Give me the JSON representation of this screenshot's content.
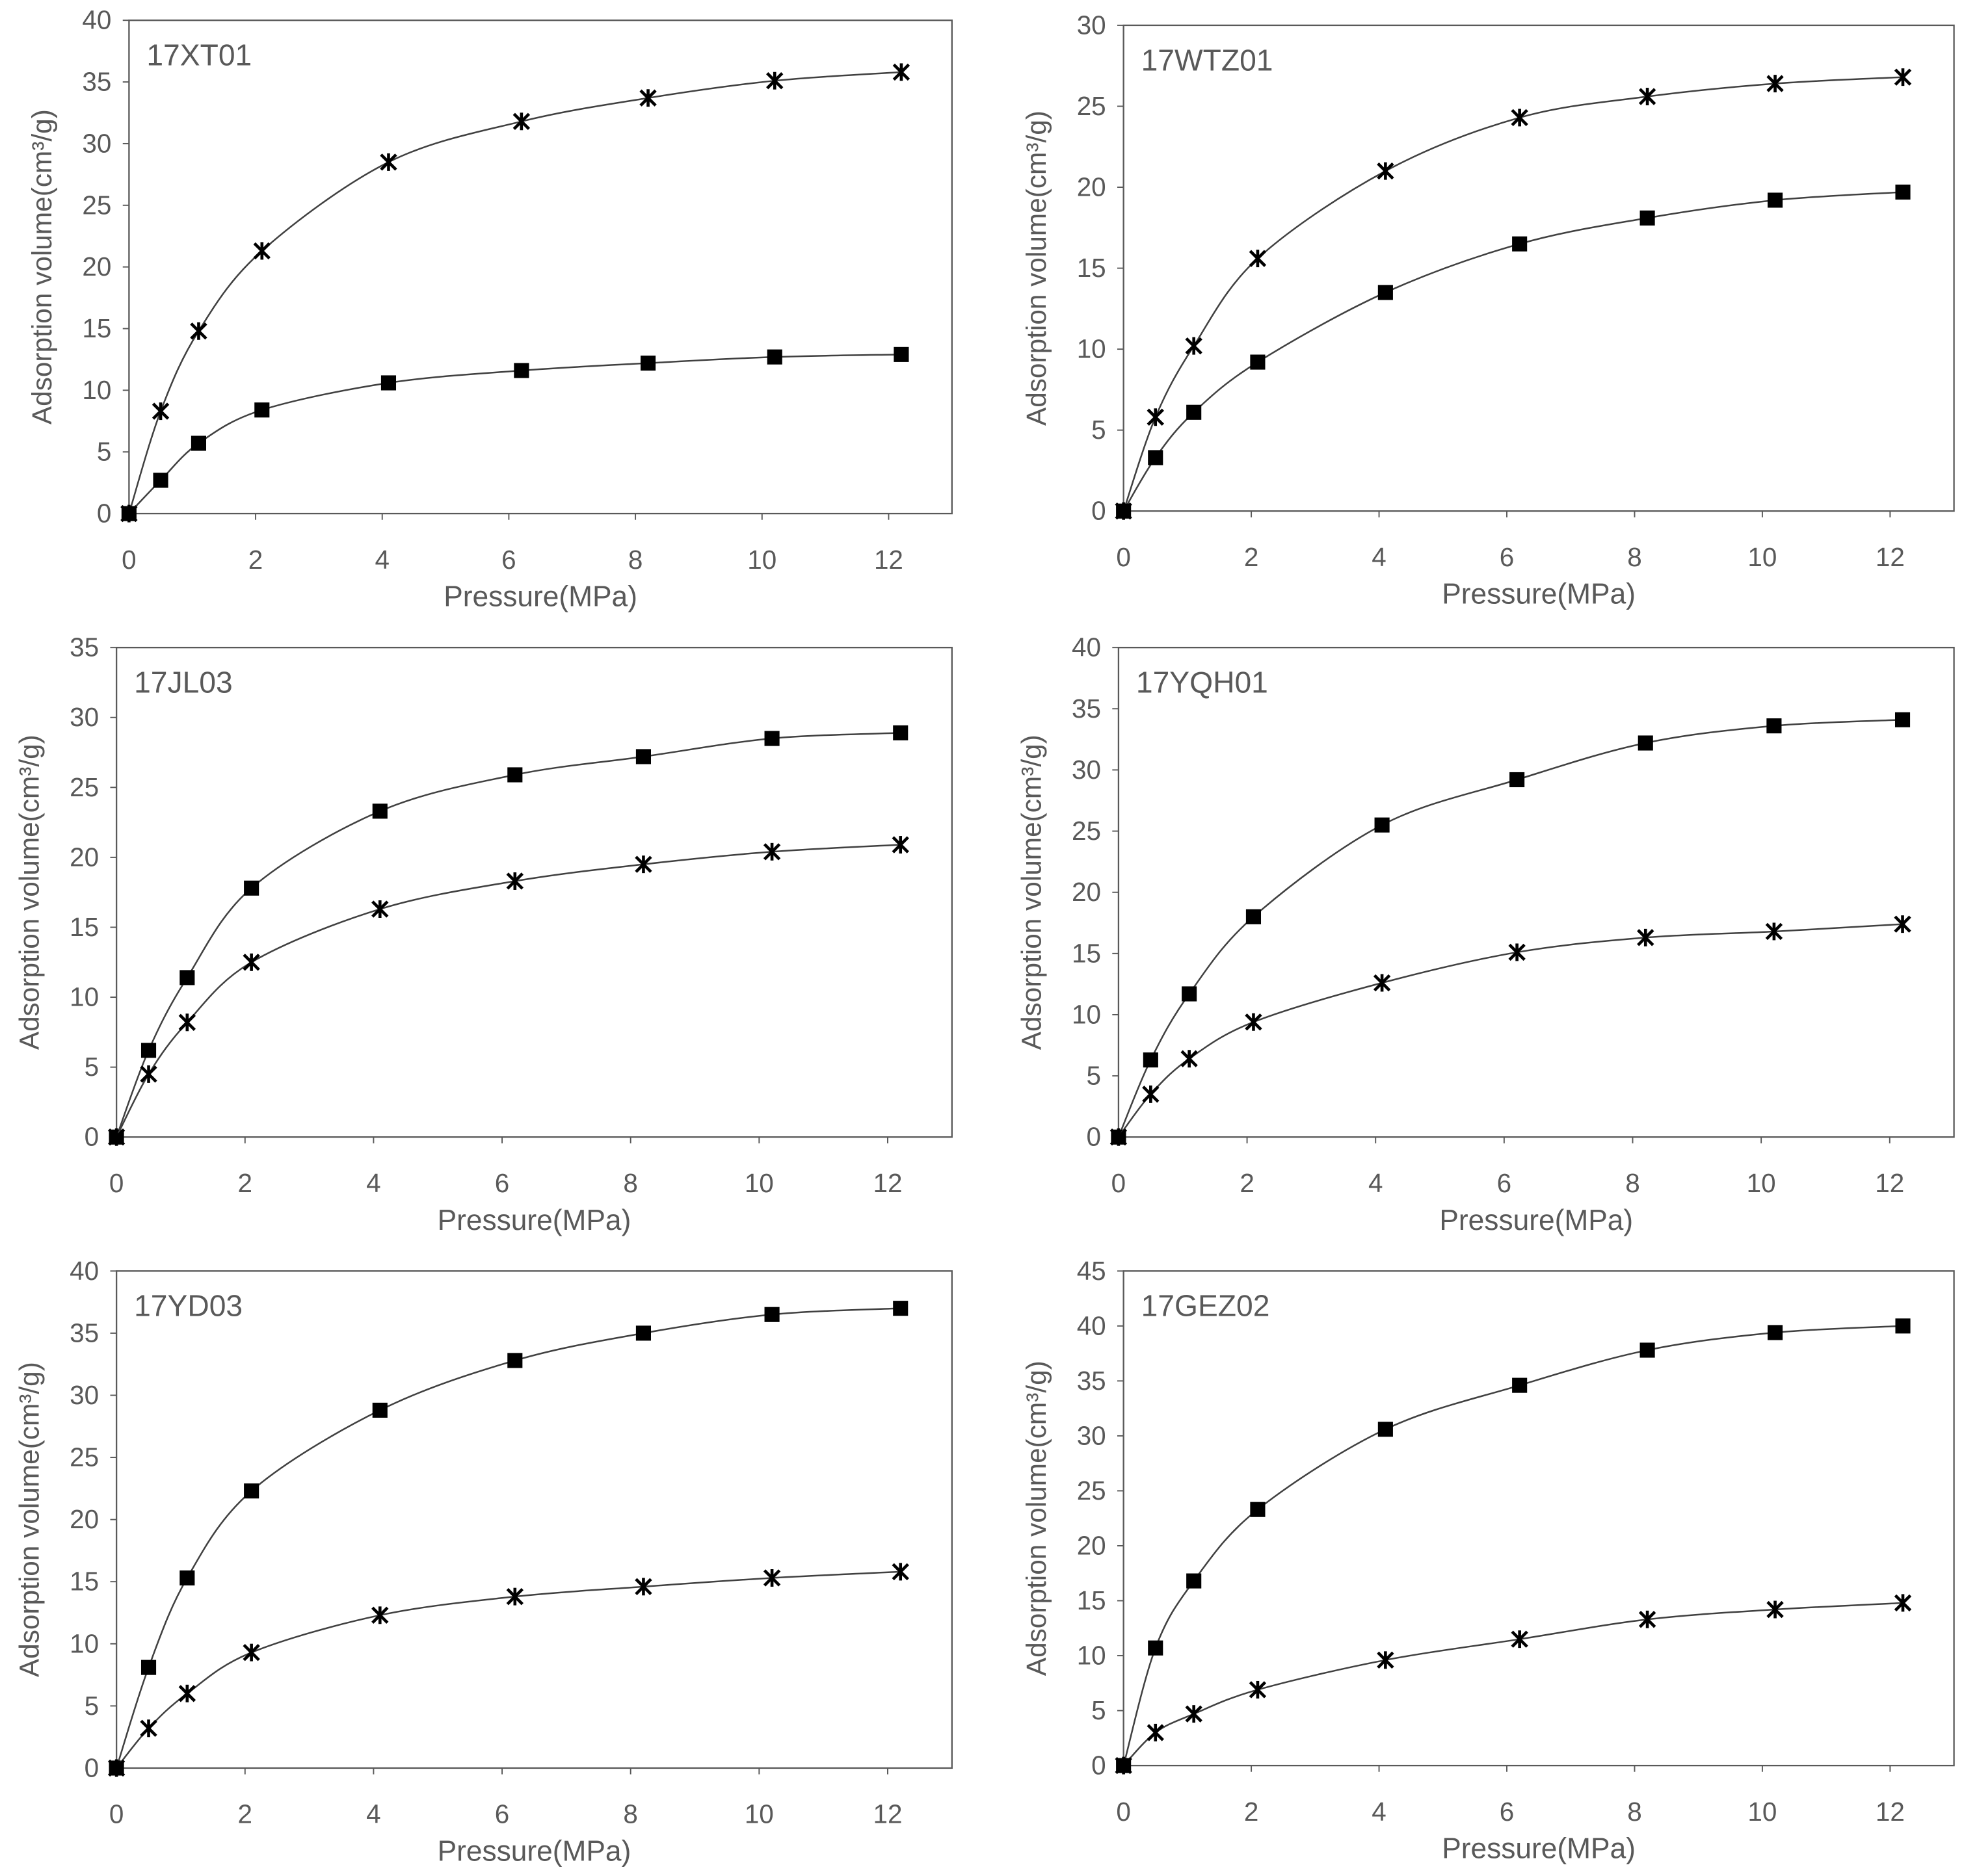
{
  "chart_data": [
    {
      "type": "line",
      "title": "17XT01",
      "xlabel": "Pressure(MPa)",
      "ylabel": "Adsorption volume(cm³/g)",
      "xlim": [
        0,
        13
      ],
      "ylim": [
        0,
        40
      ],
      "yticks": [
        0,
        5,
        10,
        15,
        20,
        25,
        30,
        35,
        40
      ],
      "xticks": [
        0,
        2,
        4,
        6,
        8,
        10,
        12
      ],
      "x": [
        0,
        0.5,
        1.1,
        2.1,
        4.1,
        6.2,
        8.2,
        10.2,
        12.2
      ],
      "series": [
        {
          "name": "star",
          "marker": "star",
          "values": [
            0,
            8.3,
            14.8,
            21.3,
            28.5,
            31.8,
            33.7,
            35.1,
            35.8
          ]
        },
        {
          "name": "square",
          "marker": "square",
          "values": [
            0,
            2.7,
            5.7,
            8.4,
            10.6,
            11.6,
            12.2,
            12.7,
            12.9
          ]
        }
      ]
    },
    {
      "type": "line",
      "title": "17WTZ01",
      "xlabel": "Pressure(MPa)",
      "ylabel": "Adsorption volume(cm³/g)",
      "xlim": [
        0,
        13
      ],
      "ylim": [
        0,
        30
      ],
      "yticks": [
        0,
        5,
        10,
        15,
        20,
        25,
        30
      ],
      "xticks": [
        0,
        2,
        4,
        6,
        8,
        10,
        12
      ],
      "x": [
        0,
        0.5,
        1.1,
        2.1,
        4.1,
        6.2,
        8.2,
        10.2,
        12.2
      ],
      "series": [
        {
          "name": "star",
          "marker": "star",
          "values": [
            0,
            5.8,
            10.2,
            15.6,
            21.0,
            24.3,
            25.6,
            26.4,
            26.8
          ]
        },
        {
          "name": "square",
          "marker": "square",
          "values": [
            0,
            3.3,
            6.1,
            9.2,
            13.5,
            16.5,
            18.1,
            19.2,
            19.7
          ]
        }
      ]
    },
    {
      "type": "line",
      "title": "17JL03",
      "xlabel": "Pressure(MPa)",
      "ylabel": "Adsorption volume(cm³/g)",
      "xlim": [
        0,
        13
      ],
      "ylim": [
        0,
        35
      ],
      "yticks": [
        0,
        5,
        10,
        15,
        20,
        25,
        30,
        35
      ],
      "xticks": [
        0,
        2,
        4,
        6,
        8,
        10,
        12
      ],
      "x": [
        0,
        0.5,
        1.1,
        2.1,
        4.1,
        6.2,
        8.2,
        10.2,
        12.2
      ],
      "series": [
        {
          "name": "square",
          "marker": "square",
          "values": [
            0,
            6.2,
            11.4,
            17.8,
            23.3,
            25.9,
            27.2,
            28.5,
            28.9
          ]
        },
        {
          "name": "star",
          "marker": "star",
          "values": [
            0,
            4.5,
            8.2,
            12.5,
            16.3,
            18.3,
            19.5,
            20.4,
            20.9
          ]
        }
      ]
    },
    {
      "type": "line",
      "title": "17YQH01",
      "xlabel": "Pressure(MPa)",
      "ylabel": "Adsorption volume(cm³/g)",
      "xlim": [
        0,
        13
      ],
      "ylim": [
        0,
        40
      ],
      "yticks": [
        0,
        5,
        10,
        15,
        20,
        25,
        30,
        35,
        40
      ],
      "xticks": [
        0,
        2,
        4,
        6,
        8,
        10,
        12
      ],
      "x": [
        0,
        0.5,
        1.1,
        2.1,
        4.1,
        6.2,
        8.2,
        10.2,
        12.2
      ],
      "series": [
        {
          "name": "square",
          "marker": "square",
          "values": [
            0,
            6.3,
            11.7,
            18.0,
            25.5,
            29.2,
            32.2,
            33.6,
            34.1
          ]
        },
        {
          "name": "star",
          "marker": "star",
          "values": [
            0,
            3.5,
            6.4,
            9.4,
            12.6,
            15.1,
            16.3,
            16.8,
            17.4
          ]
        }
      ]
    },
    {
      "type": "line",
      "title": "17YD03",
      "xlabel": "Pressure(MPa)",
      "ylabel": "Adsorption volume(cm³/g)",
      "xlim": [
        0,
        13
      ],
      "ylim": [
        0,
        40
      ],
      "yticks": [
        0,
        5,
        10,
        15,
        20,
        25,
        30,
        35,
        40
      ],
      "xticks": [
        0,
        2,
        4,
        6,
        8,
        10,
        12
      ],
      "x": [
        0,
        0.5,
        1.1,
        2.1,
        4.1,
        6.2,
        8.2,
        10.2,
        12.2
      ],
      "series": [
        {
          "name": "square",
          "marker": "square",
          "values": [
            0,
            8.1,
            15.3,
            22.3,
            28.8,
            32.8,
            35.0,
            36.5,
            37.0
          ]
        },
        {
          "name": "star",
          "marker": "star",
          "values": [
            0,
            3.2,
            6.0,
            9.3,
            12.3,
            13.8,
            14.6,
            15.3,
            15.8
          ]
        }
      ]
    },
    {
      "type": "line",
      "title": "17GEZ02",
      "xlabel": "Pressure(MPa)",
      "ylabel": "Adsorption volume(cm³/g)",
      "xlim": [
        0,
        13
      ],
      "ylim": [
        0,
        45
      ],
      "yticks": [
        0,
        5,
        10,
        15,
        20,
        25,
        30,
        35,
        40,
        45
      ],
      "xticks": [
        0,
        2,
        4,
        6,
        8,
        10,
        12
      ],
      "x": [
        0,
        0.5,
        1.1,
        2.1,
        4.1,
        6.2,
        8.2,
        10.2,
        12.2
      ],
      "series": [
        {
          "name": "square",
          "marker": "square",
          "values": [
            0,
            10.7,
            16.8,
            23.3,
            30.6,
            34.6,
            37.8,
            39.4,
            40.0
          ]
        },
        {
          "name": "star",
          "marker": "star",
          "values": [
            0,
            3.0,
            4.7,
            6.9,
            9.6,
            11.5,
            13.3,
            14.2,
            14.8
          ]
        }
      ]
    }
  ]
}
